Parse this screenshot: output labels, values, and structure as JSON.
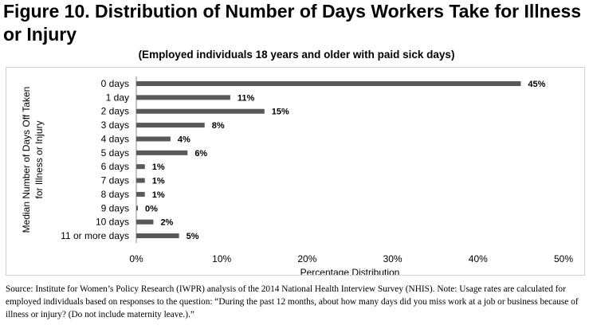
{
  "figure": {
    "title": "Figure 10. Distribution of Number of Days Workers Take for Illness or Injury",
    "subtitle": "(Employed individuals 18 years and older with paid sick days)",
    "source": "Source: Institute for Women’s Policy Research (IWPR) analysis of the 2014 National Health Interview Survey (NHIS). Note: Usage rates are calculated for employed individuals based on responses to the question: “During the past 12 months, about how many days did you miss work at a job or business because of illness or injury? (Do not include maternity leave.).”"
  },
  "chart_data": {
    "type": "bar",
    "orientation": "horizontal",
    "title": "(Employed individuals 18 years and older with paid sick days)",
    "categories": [
      "0 days",
      "1 day",
      "2 days",
      "3 days",
      "4 days",
      "5 days",
      "6 days",
      "7 days",
      "8 days",
      "9 days",
      "10 days",
      "11 or more days"
    ],
    "values": [
      45,
      11,
      15,
      8,
      4,
      6,
      1,
      1,
      1,
      0,
      2,
      5
    ],
    "data_labels": [
      "45%",
      "11%",
      "15%",
      "8%",
      "4%",
      "6%",
      "1%",
      "1%",
      "1%",
      "0%",
      "2%",
      "5%"
    ],
    "xlabel": "Percentage Distribution",
    "ylabel_lines": [
      "Median Number of Days Off Taken",
      "for Illness or Injury"
    ],
    "xlim": [
      0,
      50
    ],
    "xticks": [
      0,
      10,
      20,
      30,
      40,
      50
    ],
    "xtick_labels": [
      "0%",
      "10%",
      "20%",
      "30%",
      "40%",
      "50%"
    ],
    "grid": false,
    "bar_color": "#595959"
  }
}
